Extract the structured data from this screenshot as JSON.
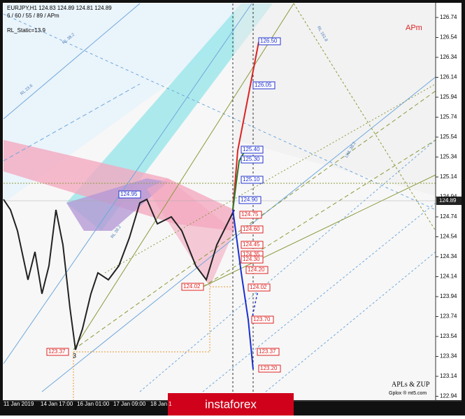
{
  "header": {
    "symbol_line": "EURJPY,H1  124.83 124.89 124.81 124.89",
    "params": "6 / 60 / 55 / 89 / APm",
    "static": "RL_Static=13.9",
    "tag": "APm"
  },
  "price_axis": [
    "126.74",
    "126.54",
    "126.34",
    "126.14",
    "125.94",
    "125.74",
    "125.54",
    "125.34",
    "125.14",
    "124.94",
    "124.74",
    "124.54",
    "124.34",
    "124.14",
    "123.94",
    "123.74",
    "123.54",
    "123.34",
    "123.14",
    "122.94"
  ],
  "current_price": "124.89",
  "time_axis": [
    "11 Jan 2019",
    "14 Jan 17:00",
    "16 Jan 01:00",
    "17 Jan 09:00",
    "18 Jan 1"
  ],
  "levels": [
    {
      "label": "126.50",
      "color": "blue"
    },
    {
      "label": "126.05",
      "color": "blue"
    },
    {
      "label": "125.40",
      "color": "blue"
    },
    {
      "label": "125.30",
      "color": "blue"
    },
    {
      "label": "125.10",
      "color": "blue"
    },
    {
      "label": "124.90",
      "color": "blue"
    },
    {
      "label": "124.75",
      "color": "red"
    },
    {
      "label": "124.60",
      "color": "red"
    },
    {
      "label": "124.45",
      "color": "red"
    },
    {
      "label": "124.35",
      "color": "red"
    },
    {
      "label": "124.30",
      "color": "red"
    },
    {
      "label": "124.20",
      "color": "red"
    },
    {
      "label": "124.02",
      "color": "red"
    },
    {
      "label": "123.70",
      "color": "red"
    },
    {
      "label": "123.37",
      "color": "red"
    },
    {
      "label": "123.20",
      "color": "red"
    },
    {
      "label": "124.95",
      "color": "blue"
    },
    {
      "label": "124.02",
      "color": "red"
    },
    {
      "label": "123.37",
      "color": "red"
    }
  ],
  "fan_labels": [
    "RL 38.2",
    "RL 23.6",
    "RL 161.8",
    "LWL 38.2",
    "RL 38.2"
  ],
  "wave_label": "3",
  "credits": "APLs & ZUP",
  "credits_sub": "Gplox ® mt5.com",
  "banner": "instaforex"
}
